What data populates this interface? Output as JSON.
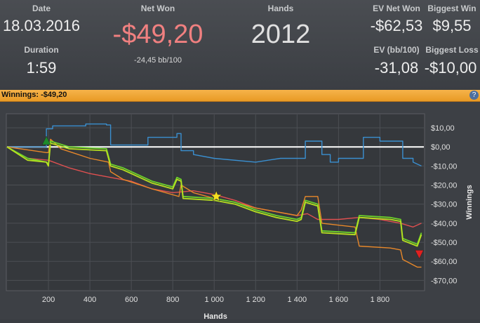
{
  "stats": {
    "date": {
      "label": "Date",
      "value": "18.03.2016"
    },
    "duration": {
      "label": "Duration",
      "value": "1:59"
    },
    "net_won": {
      "label": "Net Won",
      "value": "-$49,20",
      "sub": "-24,45 bb/100"
    },
    "hands": {
      "label": "Hands",
      "value": "2012"
    },
    "ev_net_won": {
      "label": "EV Net Won",
      "value": "-$62,53"
    },
    "biggest_win": {
      "label": "Biggest Win",
      "value": "$9,55"
    },
    "ev_bb": {
      "label": "EV (bb/100)",
      "value": "-31,08"
    },
    "biggest_loss": {
      "label": "Biggest Loss",
      "value": "-$10,00"
    }
  },
  "titlebar": {
    "text": "Winnings:  -$49,20",
    "help_icon": "?"
  },
  "colors": {
    "net_won": "#f08080",
    "accent_bar": "#f0a030",
    "blue": "#3a8fd0",
    "green": "#6cd22a",
    "orange": "#e8882a",
    "red": "#e05050"
  },
  "chart_data": {
    "type": "line",
    "xlabel": "Hands",
    "ylabel": "Winnings",
    "xlim": [
      0,
      2012
    ],
    "ylim": [
      -75,
      17
    ],
    "x_ticks": [
      200,
      400,
      600,
      800,
      1000,
      1200,
      1400,
      1600,
      1800
    ],
    "x_tick_labels": [
      "200",
      "400",
      "600",
      "800",
      "1 000",
      "1 200",
      "1 400",
      "1 600",
      "1 800"
    ],
    "y_ticks": [
      10,
      0,
      -10,
      -20,
      -30,
      -40,
      -50,
      -60,
      -70
    ],
    "y_tick_labels": [
      "$10,00",
      "$0,00",
      "-$10,00",
      "-$20,00",
      "-$30,00",
      "-$40,00",
      "-$50,00",
      "-$60,00",
      "-$70,00"
    ],
    "series": [
      {
        "color": "#3a8fd0",
        "step": true,
        "points": [
          [
            0,
            0
          ],
          [
            190,
            0
          ],
          [
            190,
            9.5
          ],
          [
            220,
            9.5
          ],
          [
            220,
            11
          ],
          [
            380,
            11
          ],
          [
            380,
            12
          ],
          [
            480,
            12
          ],
          [
            480,
            11.5
          ],
          [
            500,
            11.5
          ],
          [
            500,
            1
          ],
          [
            680,
            1
          ],
          [
            680,
            5
          ],
          [
            820,
            5
          ],
          [
            820,
            7
          ],
          [
            840,
            7
          ],
          [
            840,
            -2
          ],
          [
            900,
            -2
          ],
          [
            900,
            -4
          ],
          [
            1000,
            -6
          ],
          [
            1200,
            -8
          ],
          [
            1320,
            -6
          ],
          [
            1440,
            -6
          ],
          [
            1440,
            3
          ],
          [
            1520,
            3
          ],
          [
            1520,
            -4
          ],
          [
            1560,
            -4
          ],
          [
            1560,
            -8
          ],
          [
            1600,
            -8
          ],
          [
            1600,
            -6
          ],
          [
            1720,
            -6
          ],
          [
            1720,
            5
          ],
          [
            1800,
            5
          ],
          [
            1800,
            3
          ],
          [
            1910,
            3
          ],
          [
            1910,
            -6
          ],
          [
            1960,
            -6
          ],
          [
            1960,
            -8
          ],
          [
            2000,
            -10
          ]
        ]
      },
      {
        "color": "#e05050",
        "step": false,
        "points": [
          [
            0,
            0
          ],
          [
            100,
            -6
          ],
          [
            200,
            -7
          ],
          [
            300,
            -11
          ],
          [
            400,
            -14
          ],
          [
            500,
            -16
          ],
          [
            600,
            -18
          ],
          [
            700,
            -22
          ],
          [
            800,
            -24
          ],
          [
            900,
            -23
          ],
          [
            1000,
            -25
          ],
          [
            1100,
            -28
          ],
          [
            1200,
            -32
          ],
          [
            1300,
            -34
          ],
          [
            1400,
            -36
          ],
          [
            1450,
            -35
          ],
          [
            1500,
            -38
          ],
          [
            1600,
            -38
          ],
          [
            1700,
            -37
          ],
          [
            1800,
            -38
          ],
          [
            1900,
            -40
          ],
          [
            1960,
            -42
          ],
          [
            2000,
            -40
          ]
        ]
      },
      {
        "color": "#e8882a",
        "step": false,
        "points": [
          [
            0,
            0
          ],
          [
            190,
            -3
          ],
          [
            200,
            -3
          ],
          [
            210,
            4
          ],
          [
            260,
            -1
          ],
          [
            400,
            -6
          ],
          [
            490,
            -8
          ],
          [
            500,
            -13
          ],
          [
            560,
            -17
          ],
          [
            700,
            -22
          ],
          [
            830,
            -26
          ],
          [
            840,
            -20
          ],
          [
            900,
            -24
          ],
          [
            1000,
            -27
          ],
          [
            1100,
            -29
          ],
          [
            1200,
            -32
          ],
          [
            1300,
            -34
          ],
          [
            1400,
            -36
          ],
          [
            1420,
            -33
          ],
          [
            1440,
            -26
          ],
          [
            1500,
            -26
          ],
          [
            1520,
            -40
          ],
          [
            1680,
            -42
          ],
          [
            1700,
            -52
          ],
          [
            1850,
            -53
          ],
          [
            1900,
            -54
          ],
          [
            1910,
            -59
          ],
          [
            1980,
            -63
          ],
          [
            2000,
            -63
          ]
        ]
      },
      {
        "color": "#6cd22a",
        "step": false,
        "points": [
          [
            0,
            0
          ],
          [
            100,
            -6
          ],
          [
            190,
            -8
          ],
          [
            200,
            -9
          ],
          [
            210,
            3
          ],
          [
            300,
            0
          ],
          [
            480,
            -1
          ],
          [
            500,
            -9
          ],
          [
            560,
            -11
          ],
          [
            700,
            -18
          ],
          [
            800,
            -21
          ],
          [
            820,
            -16
          ],
          [
            840,
            -17
          ],
          [
            850,
            -26
          ],
          [
            1000,
            -27
          ],
          [
            1100,
            -29
          ],
          [
            1200,
            -33
          ],
          [
            1300,
            -36
          ],
          [
            1400,
            -38
          ],
          [
            1420,
            -37
          ],
          [
            1440,
            -28
          ],
          [
            1500,
            -30
          ],
          [
            1520,
            -44
          ],
          [
            1680,
            -45
          ],
          [
            1700,
            -36
          ],
          [
            1850,
            -37
          ],
          [
            1900,
            -38
          ],
          [
            1910,
            -48
          ],
          [
            1980,
            -51
          ],
          [
            2000,
            -45
          ]
        ]
      },
      {
        "color": "#b8e020",
        "step": false,
        "points": [
          [
            0,
            0
          ],
          [
            100,
            -7
          ],
          [
            190,
            -8
          ],
          [
            200,
            -10
          ],
          [
            210,
            2
          ],
          [
            300,
            -1
          ],
          [
            480,
            -2
          ],
          [
            500,
            -10
          ],
          [
            560,
            -12
          ],
          [
            700,
            -19
          ],
          [
            800,
            -22
          ],
          [
            820,
            -17
          ],
          [
            840,
            -18
          ],
          [
            850,
            -27
          ],
          [
            1000,
            -28
          ],
          [
            1100,
            -30
          ],
          [
            1200,
            -34
          ],
          [
            1300,
            -37
          ],
          [
            1400,
            -39
          ],
          [
            1420,
            -38
          ],
          [
            1440,
            -29
          ],
          [
            1500,
            -31
          ],
          [
            1520,
            -45
          ],
          [
            1680,
            -46
          ],
          [
            1700,
            -37
          ],
          [
            1850,
            -38
          ],
          [
            1900,
            -39
          ],
          [
            1910,
            -49
          ],
          [
            1980,
            -52
          ],
          [
            2000,
            -46
          ]
        ]
      }
    ],
    "markers": [
      {
        "type": "triangle-up",
        "color": "#1e8a2a",
        "x": 190,
        "y": 3
      },
      {
        "type": "star",
        "color": "#f5e020",
        "x": 1010,
        "y": -26
      },
      {
        "type": "triangle-down",
        "color": "#e02020",
        "x": 1990,
        "y": -56
      }
    ]
  }
}
